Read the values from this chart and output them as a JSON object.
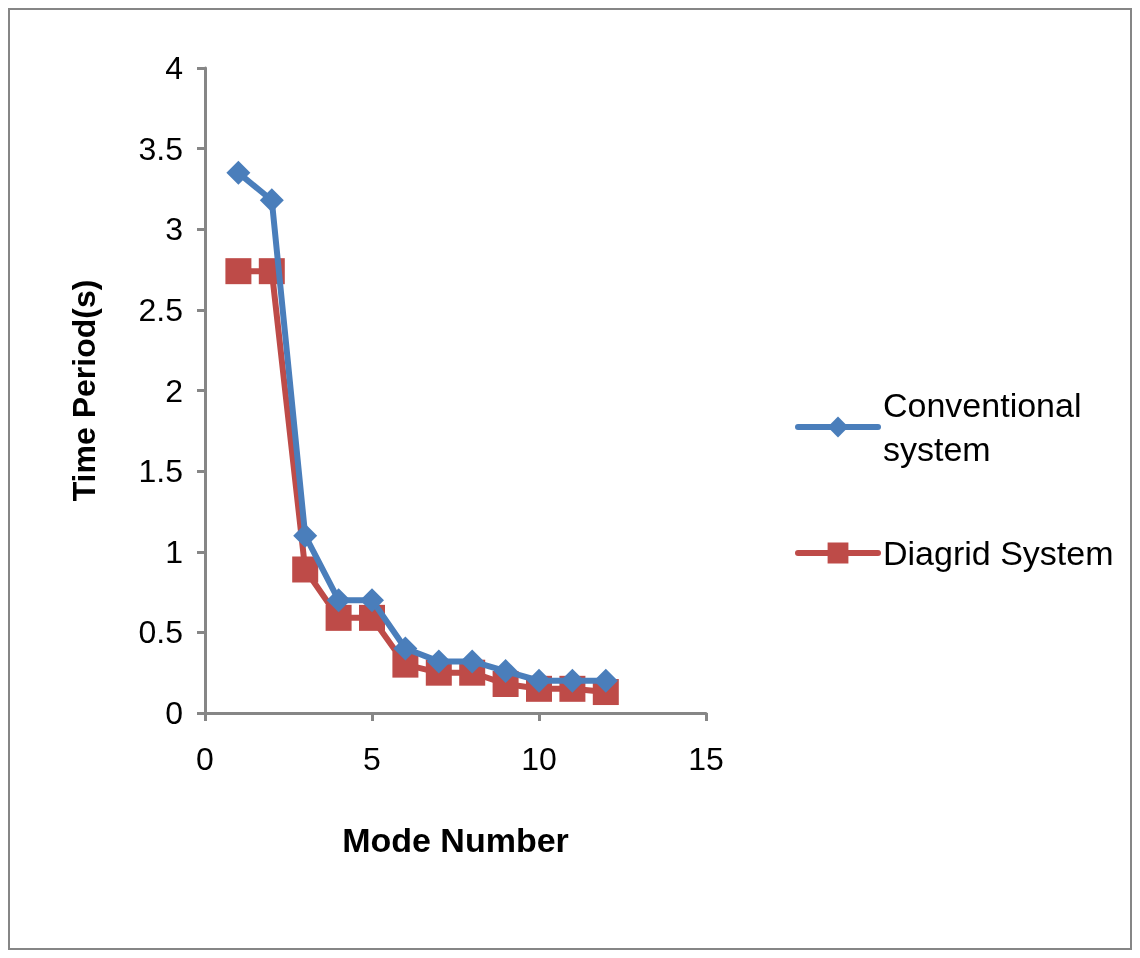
{
  "chart_data": {
    "type": "line",
    "xlabel": "Mode Number",
    "ylabel": "Time Period(s)",
    "x": [
      1,
      2,
      3,
      4,
      5,
      6,
      7,
      8,
      9,
      10,
      11,
      12
    ],
    "series": [
      {
        "name": "Conventional system",
        "color": "#4a7ebb",
        "marker": "diamond",
        "values": [
          3.35,
          3.18,
          1.1,
          0.7,
          0.7,
          0.4,
          0.32,
          0.32,
          0.26,
          0.2,
          0.2,
          0.2
        ]
      },
      {
        "name": "Diagrid System",
        "color": "#be4b48",
        "marker": "square",
        "values": [
          2.74,
          2.74,
          0.89,
          0.59,
          0.59,
          0.3,
          0.25,
          0.25,
          0.18,
          0.15,
          0.15,
          0.13
        ]
      }
    ],
    "xlim": [
      0,
      15
    ],
    "xticks": [
      0,
      5,
      10,
      15
    ],
    "ylim": [
      0,
      4
    ],
    "yticks": [
      0,
      0.5,
      1,
      1.5,
      2,
      2.5,
      3,
      3.5,
      4
    ],
    "grid": false,
    "legend": "right"
  }
}
